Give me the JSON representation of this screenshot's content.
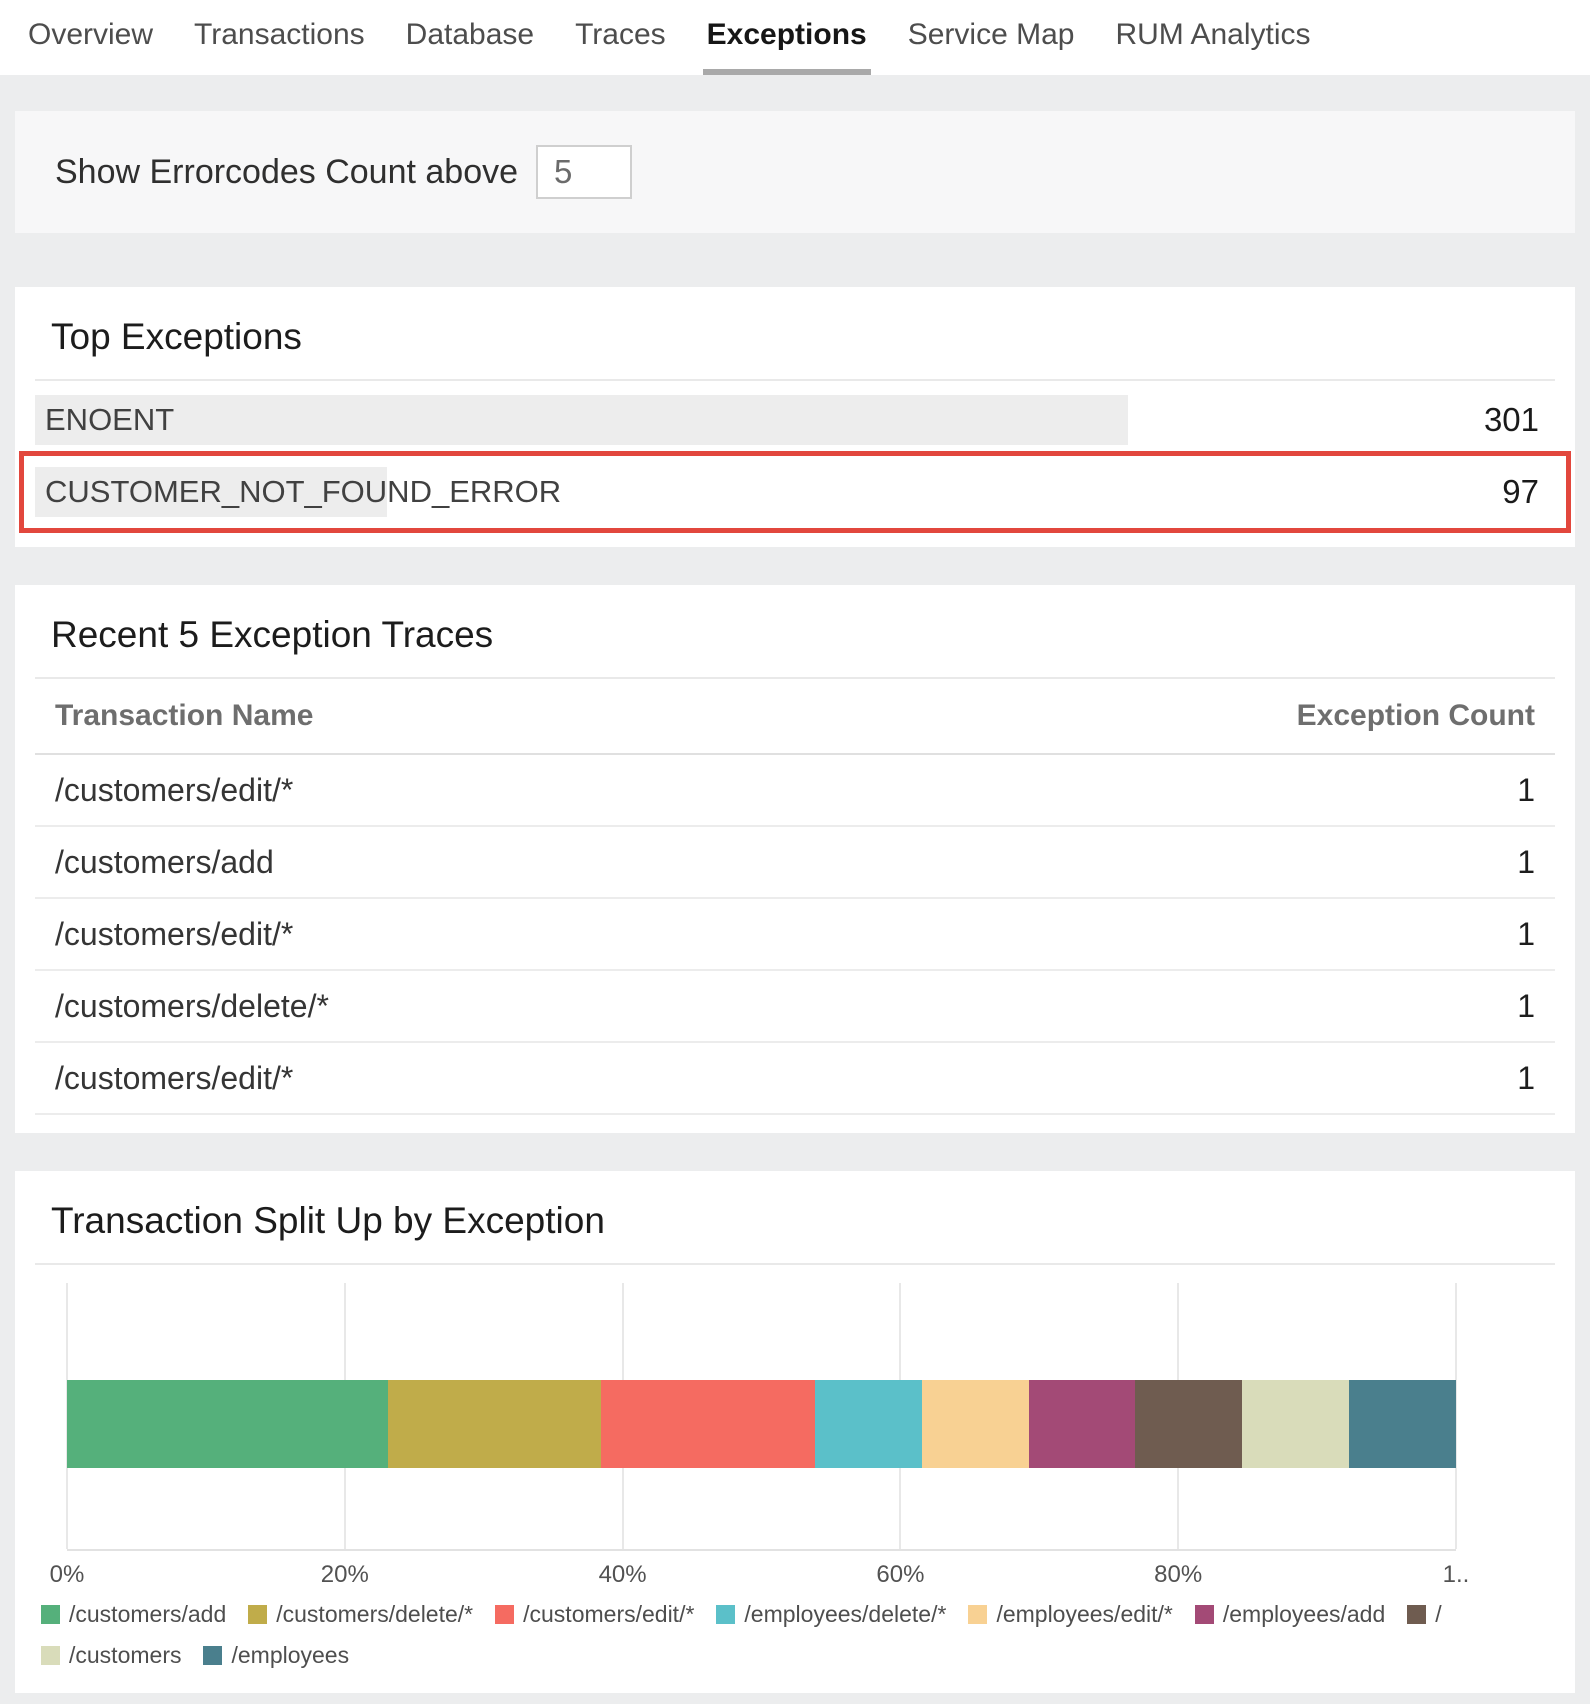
{
  "nav": {
    "tabs": [
      "Overview",
      "Transactions",
      "Database",
      "Traces",
      "Exceptions",
      "Service Map",
      "RUM Analytics"
    ],
    "active_tab": "Exceptions"
  },
  "filter_panel": {
    "label": "Show Errorcodes Count above",
    "input_value": "5"
  },
  "top_exceptions": {
    "title": "Top Exceptions",
    "highlight_color": "#e2473d",
    "items": [
      {
        "name": "ENOENT",
        "count": 301,
        "highlighted": false
      },
      {
        "name": "CUSTOMER_NOT_FOUND_ERROR",
        "count": 97,
        "highlighted": true
      }
    ]
  },
  "recent_traces": {
    "title": "Recent 5 Exception Traces",
    "columns": {
      "name": "Transaction Name",
      "count": "Exception Count"
    },
    "rows": [
      {
        "name": "/customers/edit/*",
        "count": 1
      },
      {
        "name": "/customers/add",
        "count": 1
      },
      {
        "name": "/customers/edit/*",
        "count": 1
      },
      {
        "name": "/customers/delete/*",
        "count": 1
      },
      {
        "name": "/customers/edit/*",
        "count": 1
      }
    ]
  },
  "chart_data": {
    "type": "bar",
    "orientation": "horizontal",
    "stacked": true,
    "title": "Transaction Split Up by Exception",
    "xlabel": "",
    "ylabel": "",
    "xlim": [
      0,
      100
    ],
    "x_tick_labels": [
      "0%",
      "20%",
      "40%",
      "60%",
      "80%",
      "1.."
    ],
    "grid": true,
    "legend_position": "bottom",
    "series": [
      {
        "name": "/customers/add",
        "value_pct": 23.08,
        "color": "#55b07b"
      },
      {
        "name": "/customers/delete/*",
        "value_pct": 15.38,
        "color": "#c0ac4a"
      },
      {
        "name": "/customers/edit/*",
        "value_pct": 15.38,
        "color": "#f56b61"
      },
      {
        "name": "/employees/delete/*",
        "value_pct": 7.69,
        "color": "#5bc0c9"
      },
      {
        "name": "/employees/edit/*",
        "value_pct": 7.69,
        "color": "#f8d193"
      },
      {
        "name": "/employees/add",
        "value_pct": 7.69,
        "color": "#a34a76"
      },
      {
        "name": "/",
        "value_pct": 7.69,
        "color": "#6f5c50"
      },
      {
        "name": "/customers",
        "value_pct": 7.69,
        "color": "#d9dcba"
      },
      {
        "name": "/employees",
        "value_pct": 7.69,
        "color": "#4a7f8d"
      }
    ]
  }
}
